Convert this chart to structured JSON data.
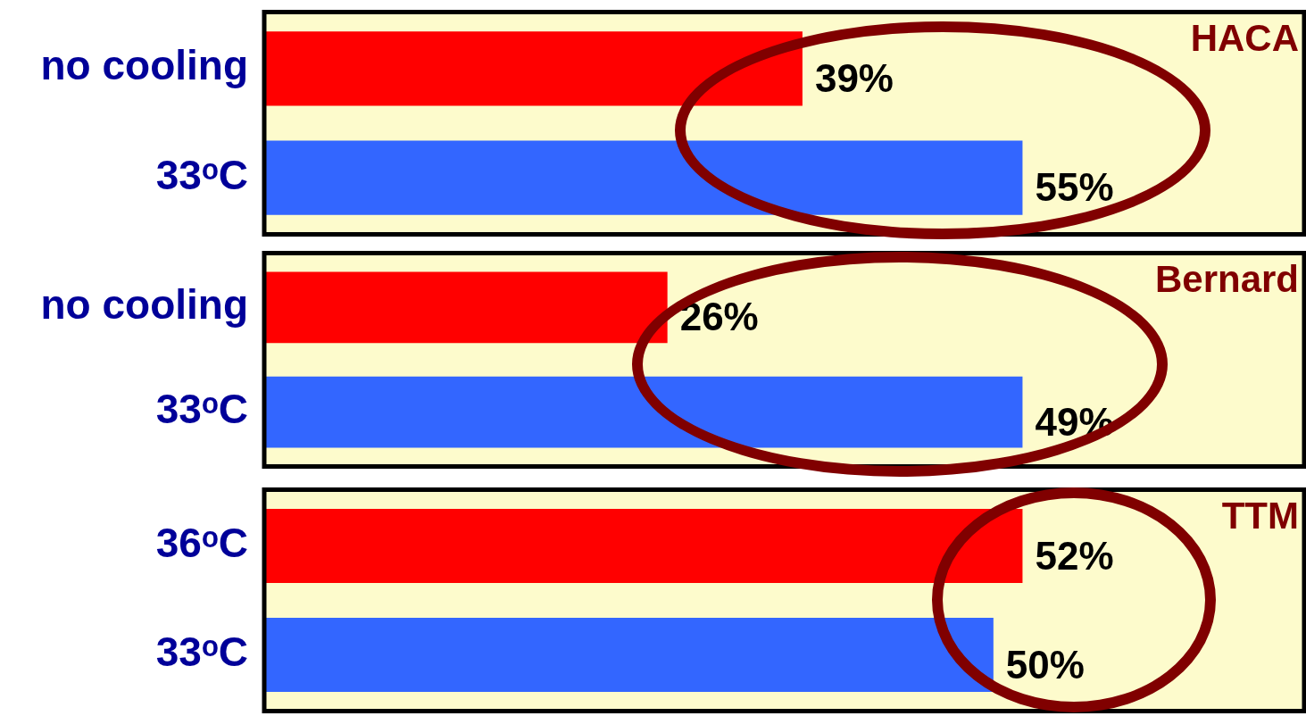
{
  "chart_data": [
    {
      "type": "bar",
      "orientation": "horizontal",
      "annotations": [
        "HACA"
      ],
      "categories": [
        "no cooling",
        "33ᵒC"
      ],
      "values": [
        39,
        55
      ],
      "colors": [
        "#ff0000",
        "#3366ff"
      ],
      "value_labels": [
        "39%",
        "55%"
      ]
    },
    {
      "type": "bar",
      "orientation": "horizontal",
      "annotations": [
        "Bernard"
      ],
      "categories": [
        "no cooling",
        "33ᵒC"
      ],
      "values": [
        26,
        49
      ],
      "colors": [
        "#ff0000",
        "#3366ff"
      ],
      "value_labels": [
        "26%",
        "49%"
      ]
    },
    {
      "type": "bar",
      "orientation": "horizontal",
      "annotations": [
        "TTM"
      ],
      "categories": [
        "36ᵒC",
        "33ᵒC"
      ],
      "values": [
        52,
        50
      ],
      "colors": [
        "#ff0000",
        "#3366ff"
      ],
      "value_labels": [
        "52%",
        "50%"
      ]
    }
  ]
}
